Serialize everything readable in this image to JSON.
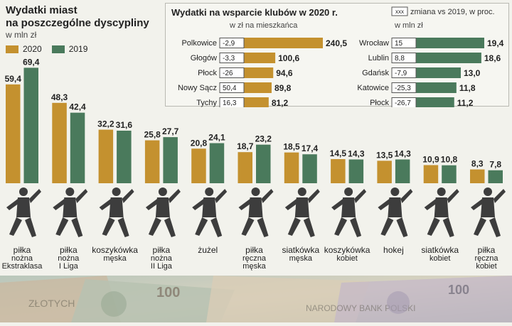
{
  "colors": {
    "y2020": "#c4912f",
    "y2019": "#4a7a5c",
    "panel_bg": "#f6f6f1",
    "text": "#222222"
  },
  "header": {
    "title_line1": "Wydatki miast",
    "title_line2": "na poszczególne dyscypliny",
    "unit": "w mln zł",
    "legend": {
      "y2020": "2020",
      "y2019": "2019"
    }
  },
  "chart_data": [
    {
      "type": "bar",
      "title": "Wydatki miast na poszczególne dyscypliny",
      "unit": "w mln zł",
      "legend_placement": "top-left",
      "categories": [
        {
          "line1": "piłka",
          "line2": "nożna",
          "line3": "Ekstraklasa"
        },
        {
          "line1": "piłka",
          "line2": "nożna",
          "line3": "I Liga"
        },
        {
          "line1": "koszykówka",
          "line2": "męska",
          "line3": ""
        },
        {
          "line1": "piłka",
          "line2": "nożna",
          "line3": "II Liga"
        },
        {
          "line1": "żużel",
          "line2": "",
          "line3": ""
        },
        {
          "line1": "piłka",
          "line2": "ręczna",
          "line3": "męska"
        },
        {
          "line1": "siatkówka",
          "line2": "męska",
          "line3": ""
        },
        {
          "line1": "koszykówka",
          "line2": "kobiet",
          "line3": ""
        },
        {
          "line1": "hokej",
          "line2": "",
          "line3": ""
        },
        {
          "line1": "siatkówka",
          "line2": "kobiet",
          "line3": ""
        },
        {
          "line1": "piłka",
          "line2": "ręczna",
          "line3": "kobiet"
        }
      ],
      "series": [
        {
          "name": "2020",
          "values": [
            59.4,
            48.3,
            32.2,
            25.8,
            20.8,
            18.7,
            18.5,
            14.5,
            13.5,
            10.9,
            8.3
          ],
          "labels": [
            "59,4",
            "48,3",
            "32,2",
            "25,8",
            "20,8",
            "18,7",
            "18,5",
            "14,5",
            "13,5",
            "10,9",
            "8,3"
          ]
        },
        {
          "name": "2019",
          "values": [
            69.4,
            42.4,
            31.6,
            27.7,
            24.1,
            23.2,
            17.4,
            14.3,
            14.3,
            10.8,
            7.8
          ],
          "labels": [
            "69,4",
            "42,4",
            "31,6",
            "27,7",
            "24,1",
            "23,2",
            "17,4",
            "14,3",
            "14,3",
            "10,8",
            "7,8"
          ]
        }
      ],
      "ylim": [
        0,
        70
      ]
    },
    {
      "type": "bar",
      "orientation": "horizontal",
      "title": "Wydatki na wsparcie klubów w 2020 r.",
      "legend_box": "xxx",
      "legend_text": "zmiana vs 2019, w proc.",
      "groups": [
        {
          "subtitle": "w zł na mieszkańca",
          "color": "#c4912f",
          "xlim": [
            0,
            240.5
          ],
          "rows": [
            {
              "city": "Polkowice",
              "value": 240.5,
              "label": "240,5",
              "change": "-2,9"
            },
            {
              "city": "Głogów",
              "value": 100.6,
              "label": "100,6",
              "change": "-3,3"
            },
            {
              "city": "Płock",
              "value": 94.6,
              "label": "94,6",
              "change": "-26"
            },
            {
              "city": "Nowy Sącz",
              "value": 89.8,
              "label": "89,8",
              "change": "50,4"
            },
            {
              "city": "Tychy",
              "value": 81.2,
              "label": "81,2",
              "change": "16,3"
            }
          ]
        },
        {
          "subtitle": "w mln zł",
          "color": "#4a7a5c",
          "xlim": [
            0,
            19.4
          ],
          "rows": [
            {
              "city": "Wrocław",
              "value": 19.4,
              "label": "19,4",
              "change": "15"
            },
            {
              "city": "Lublin",
              "value": 18.6,
              "label": "18,6",
              "change": "8,8"
            },
            {
              "city": "Gdańsk",
              "value": 13.0,
              "label": "13,0",
              "change": "-7,9"
            },
            {
              "city": "Katowice",
              "value": 11.8,
              "label": "11,8",
              "change": "-25,3"
            },
            {
              "city": "Płock",
              "value": 11.2,
              "label": "11,2",
              "change": "-26,7"
            }
          ]
        }
      ]
    }
  ]
}
